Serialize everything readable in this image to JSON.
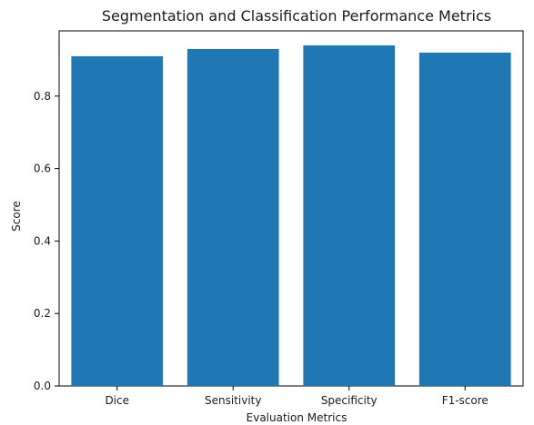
{
  "chart_data": {
    "type": "bar",
    "title": "Segmentation and Classification Performance Metrics",
    "xlabel": "Evaluation Metrics",
    "ylabel": "Score",
    "categories": [
      "Dice",
      "Sensitivity",
      "Specificity",
      "F1-score"
    ],
    "values": [
      0.91,
      0.93,
      0.94,
      0.92
    ],
    "ylim": [
      0,
      0.98
    ],
    "yticks": [
      "0.0",
      "0.2",
      "0.4",
      "0.6",
      "0.8"
    ],
    "bar_color": "#1f77b4",
    "grid": false,
    "legend": "none"
  }
}
